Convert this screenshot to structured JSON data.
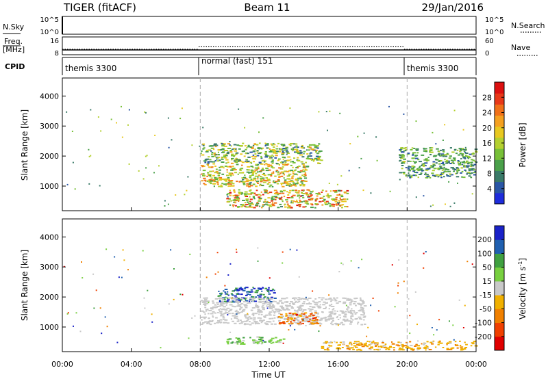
{
  "header": {
    "radar": "TIGER (fitACF)",
    "beam": "Beam 11",
    "date": "29/Jan/2016"
  },
  "nsky": {
    "label": "N.Sky",
    "ticks": [
      "10^5",
      "10^0"
    ],
    "right_ticks": [
      "10^5",
      "10^0"
    ],
    "right_label": "N.Search"
  },
  "freq": {
    "label_line1": "Freq.",
    "label_line2": "[MHz]",
    "ticks": [
      "16",
      "8"
    ],
    "right_ticks": [
      "60",
      "0"
    ],
    "right_label": "Nave"
  },
  "cpid": {
    "label": "CPID",
    "segments": [
      {
        "label": "themis 3300",
        "start_h": 0,
        "end_h": 8
      },
      {
        "label": "normal (fast) 151",
        "start_h": 8,
        "end_h": 20
      },
      {
        "label": "themis 3300",
        "start_h": 20,
        "end_h": 24
      }
    ]
  },
  "x_axis": {
    "title": "Time UT",
    "ticks": [
      "00:00",
      "04:00",
      "08:00",
      "12:00",
      "16:00",
      "20:00",
      "00:00"
    ],
    "range_h": [
      0,
      24
    ]
  },
  "chart_data": [
    {
      "type": "heatmap",
      "ylabel": "Slant Range [km]",
      "ylim": [
        180,
        4600
      ],
      "yticks": [
        "1000",
        "2000",
        "3000",
        "4000"
      ],
      "colorbar": {
        "label": "Power [dB]",
        "ticks": [
          "28",
          "24",
          "20",
          "16",
          "12",
          "8",
          "4"
        ],
        "range": [
          0,
          30
        ],
        "colors": [
          "#1e2cdc",
          "#2a56a6",
          "#3a7a68",
          "#4aa04a",
          "#78c038",
          "#b4d030",
          "#e8c820",
          "#f4a020",
          "#f07018",
          "#e83818",
          "#dc1010"
        ]
      },
      "features": [
        {
          "name": "Scatter band ~2000 km",
          "t_start_h": 8.0,
          "t_end_h": 15.0,
          "range_km": [
            1750,
            2450
          ],
          "power_db": [
            4,
            20
          ]
        },
        {
          "name": "Scatter band ~1300 km",
          "t_start_h": 8.0,
          "t_end_h": 14.2,
          "range_km": [
            1000,
            1750
          ],
          "power_db": [
            8,
            24
          ]
        },
        {
          "name": "Near-range band ~600 km",
          "t_start_h": 9.5,
          "t_end_h": 16.5,
          "range_km": [
            300,
            900
          ],
          "power_db": [
            8,
            28
          ]
        },
        {
          "name": "Evening band",
          "t_start_h": 19.5,
          "t_end_h": 24.0,
          "range_km": [
            1300,
            2300
          ],
          "power_db": [
            4,
            16
          ]
        }
      ]
    },
    {
      "type": "heatmap",
      "ylabel": "Slant Range [km]",
      "ylim": [
        180,
        4600
      ],
      "yticks": [
        "1000",
        "2000",
        "3000",
        "4000"
      ],
      "colorbar": {
        "label": "Velocity [m s^-1]",
        "ticks": [
          "200",
          "100",
          "50",
          "15",
          "-15",
          "-50",
          "-100",
          "-200"
        ],
        "range": [
          -250,
          250
        ],
        "colors": [
          "#e00000",
          "#f04000",
          "#f08000",
          "#f0b000",
          "#c8c8c8",
          "#78d040",
          "#40a040",
          "#2060b0",
          "#1a22c8"
        ]
      },
      "features": [
        {
          "name": "Positive velocity band",
          "t_start_h": 9.0,
          "t_end_h": 12.3,
          "range_km": [
            1850,
            2350
          ],
          "velocity_ms": [
            100,
            250
          ]
        },
        {
          "name": "Ground scatter band",
          "t_start_h": 8.0,
          "t_end_h": 17.5,
          "range_km": [
            1100,
            2000
          ],
          "velocity_ms": [
            -15,
            15
          ]
        },
        {
          "name": "Negative velocity patch",
          "t_start_h": 12.5,
          "t_end_h": 14.8,
          "range_km": [
            1100,
            1500
          ],
          "velocity_ms": [
            -200,
            -50
          ]
        },
        {
          "name": "Positive velocity near range",
          "t_start_h": 9.5,
          "t_end_h": 12.8,
          "range_km": [
            450,
            700
          ],
          "velocity_ms": [
            15,
            100
          ]
        },
        {
          "name": "Negative velocity near range",
          "t_start_h": 15.0,
          "t_end_h": 24.0,
          "range_km": [
            250,
            550
          ],
          "velocity_ms": [
            -100,
            -15
          ]
        }
      ]
    }
  ]
}
